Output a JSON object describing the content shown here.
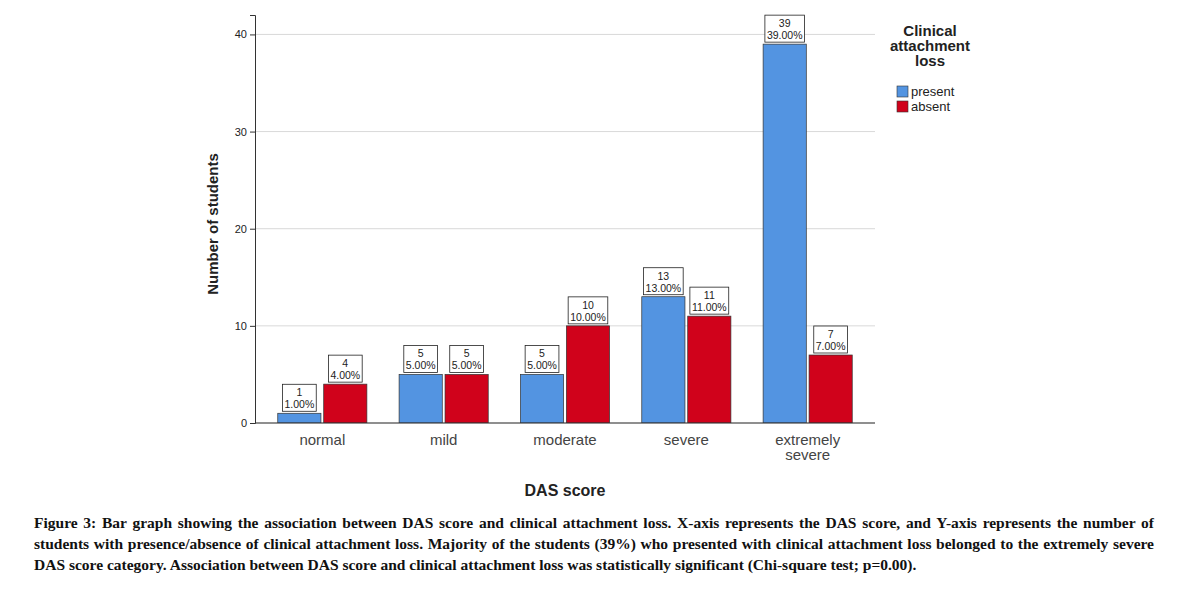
{
  "chart_data": {
    "type": "bar",
    "x_label": "DAS score",
    "y_label": "Number of students",
    "caption": "Figure 3: Bar graph showing the association between DAS score and clinical attachment loss. X-axis represents the DAS score, and Y-axis represents the number of students with presence/absence of clinical attachment loss. Majority of the students (39%) who presented with clinical attachment loss belonged to the extremely severe DAS score category. Association between DAS score and clinical attachment loss was statistically significant (Chi-square test; p=0.00).",
    "categories": [
      "normal",
      "mild",
      "moderate",
      "severe",
      "extremely severe"
    ],
    "series": [
      {
        "name": "present",
        "color": "#5394e1",
        "values": [
          1,
          5,
          5,
          13,
          39
        ],
        "value_labels": [
          "1.00%",
          "5.00%",
          "5.00%",
          "13.00%",
          "39.00%"
        ]
      },
      {
        "name": "absent",
        "color": "#d0021b",
        "values": [
          4,
          5,
          10,
          11,
          7
        ],
        "value_labels": [
          "4.00%",
          "5.00%",
          "10.00%",
          "11.00%",
          "7.00%"
        ]
      }
    ],
    "ylim": [
      0,
      42
    ],
    "yticks": [
      0,
      10,
      20,
      30,
      40
    ],
    "grid": true,
    "legend": "top right",
    "legend_title": "Clinical attachment loss",
    "data_labels": true
  }
}
